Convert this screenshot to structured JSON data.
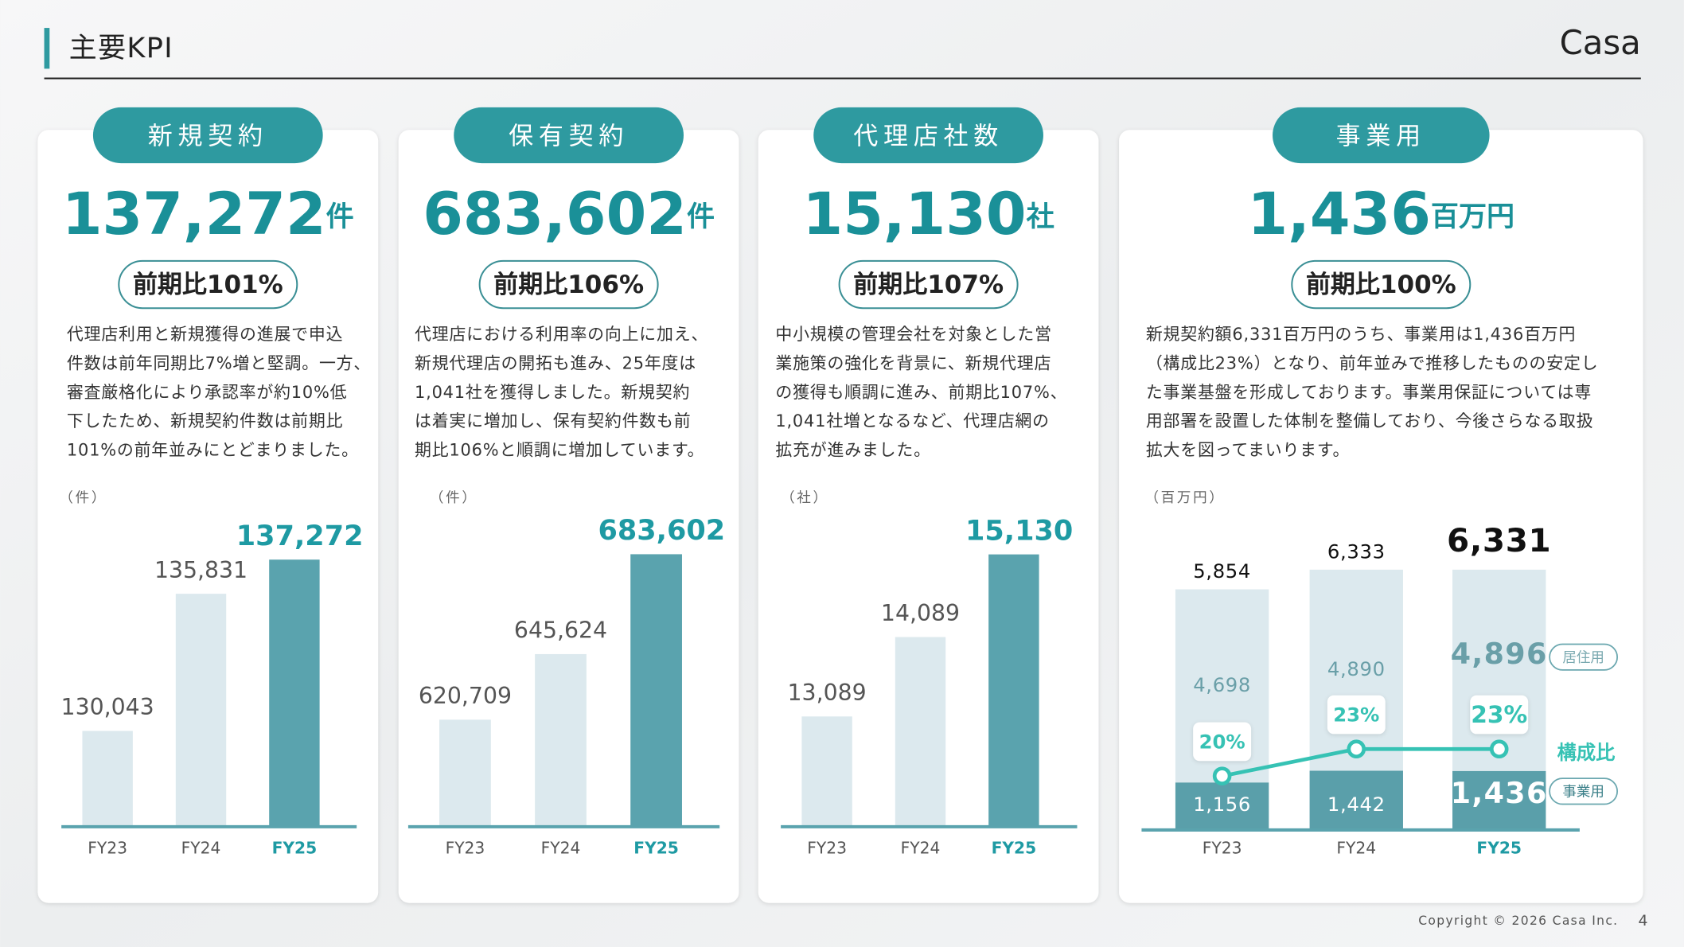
{
  "header": {
    "title": "主要KPI",
    "logo": "Casa"
  },
  "footer": {
    "copyright": "Copyright © 2026 Casa Inc.",
    "page": "4"
  },
  "cards": [
    {
      "label": "新規契約",
      "unit": "件",
      "ratio": "前期比101%",
      "text": [
        "代理店利用と新規獲得の進展で申込",
        "件数は前年同期比7%増と堅調。一方、",
        "審査厳格化により承認率が約10%低",
        "下したため、新規契約件数は前期比",
        "101%の前年並みにとどまりました。"
      ]
    },
    {
      "label": "保有契約",
      "unit": "件",
      "ratio": "前期比106%",
      "text": [
        "代理店における利用率の向上に加え、",
        "新規代理店の開拓も進み、25年度は",
        "1,041社を獲得しました。新規契約",
        "は着実に増加し、保有契約件数も前",
        "期比106%と順調に増加しています。"
      ]
    },
    {
      "label": "代理店社数",
      "unit": "社",
      "ratio": "前期比107%",
      "text": [
        "中小規模の管理会社を対象とした営",
        "業施策の強化を背景に、新規代理店",
        "の獲得も順調に進み、前期比107%、",
        "1,041社増となるなど、代理店網の",
        "拡充が進みました。"
      ]
    },
    {
      "label": "事業用",
      "unit": "百万円",
      "ratio": "前期比100%",
      "text": [
        "新規契約額6,331百万円のうち、事業用は1,436百万円",
        "（構成比23%）となり、前年並みで推移したものの安定し",
        "た事業基盤を形成しております。事業用保証については専",
        "用部署を設置した体制を整備しており、今後さらなる取扱",
        "拡大を図ってまいります。"
      ]
    }
  ],
  "chart_data": [
    {
      "type": "bar",
      "unit_label": "（件）",
      "categories": [
        "FY23",
        "FY24",
        "FY25"
      ],
      "values": [
        130043,
        135831,
        137272
      ],
      "value_labels": [
        "130,043",
        "135,831",
        "137,272"
      ],
      "colors": [
        "#dce9ee",
        "#dce9ee",
        "#5aa3ae"
      ],
      "label_colors": [
        "#555555",
        "#555555",
        "#1e9aa3"
      ],
      "emphasis": [
        false,
        false,
        true
      ],
      "ylim": [
        126000,
        140000
      ]
    },
    {
      "type": "bar",
      "unit_label": "（件）",
      "categories": [
        "FY23",
        "FY24",
        "FY25"
      ],
      "values": [
        620709,
        645624,
        683602
      ],
      "value_labels": [
        "620,709",
        "645,624",
        "683,602"
      ],
      "colors": [
        "#dce9ee",
        "#dce9ee",
        "#5aa3ae"
      ],
      "label_colors": [
        "#555555",
        "#555555",
        "#1e9aa3"
      ],
      "emphasis": [
        false,
        false,
        true
      ],
      "ylim": [
        580000,
        700000
      ]
    },
    {
      "type": "bar",
      "unit_label": "（社）",
      "categories": [
        "FY23",
        "FY24",
        "FY25"
      ],
      "values": [
        13089,
        14089,
        15130
      ],
      "value_labels": [
        "13,089",
        "14,089",
        "15,130"
      ],
      "colors": [
        "#dce9ee",
        "#dce9ee",
        "#5aa3ae"
      ],
      "label_colors": [
        "#555555",
        "#555555",
        "#1e9aa3"
      ],
      "emphasis": [
        false,
        false,
        true
      ],
      "ylim": [
        11700,
        16000
      ]
    },
    {
      "type": "combo",
      "unit_label": "（百万円）",
      "categories": [
        "FY23",
        "FY24",
        "FY25"
      ],
      "label_colors": [
        "#555555",
        "#555555",
        "#1e9aa3"
      ],
      "emphasis": [
        false,
        false,
        true
      ],
      "series": [
        {
          "name": "事業用",
          "color": "#5a9faa",
          "values": [
            1156,
            1442,
            1436
          ],
          "value_labels": [
            "1,156",
            "1,442",
            "1,436"
          ]
        },
        {
          "name": "居住用",
          "color": "#dce9ee",
          "values": [
            4698,
            4890,
            4896
          ],
          "value_labels": [
            "4,698",
            "4,890",
            "4,896"
          ]
        },
        {
          "name": "構成比",
          "color": "#36c2b4",
          "values": [
            20,
            23,
            23
          ],
          "value_labels": [
            "20%",
            "23%",
            "23%"
          ],
          "axis": "y2"
        }
      ],
      "totals": [
        5854,
        6333,
        6331
      ],
      "total_labels": [
        "5,854",
        "6,333",
        "6,331"
      ],
      "ylim": [
        0,
        7000
      ],
      "y2lim": [
        14,
        46
      ]
    }
  ]
}
